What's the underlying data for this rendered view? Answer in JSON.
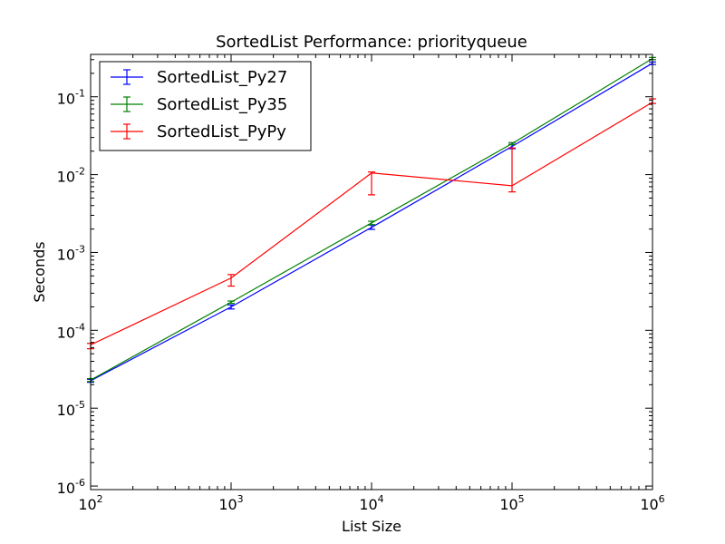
{
  "chart_data": {
    "type": "line",
    "title": "SortedList Performance: priorityqueue",
    "xlabel": "List Size",
    "ylabel": "Seconds",
    "xscale": "log",
    "yscale": "log",
    "xlim": [
      100,
      1000000
    ],
    "ylim": [
      9e-07,
      0.35
    ],
    "x": [
      100,
      1000,
      10000,
      100000,
      1000000
    ],
    "x_ticks": [
      {
        "value": 100,
        "base": "10",
        "exp": "2"
      },
      {
        "value": 1000,
        "base": "10",
        "exp": "3"
      },
      {
        "value": 10000,
        "base": "10",
        "exp": "4"
      },
      {
        "value": 100000,
        "base": "10",
        "exp": "5"
      },
      {
        "value": 1000000,
        "base": "10",
        "exp": "6"
      }
    ],
    "y_ticks": [
      {
        "value": 1e-06,
        "base": "10",
        "exp": "-6"
      },
      {
        "value": 1e-05,
        "base": "10",
        "exp": "-5"
      },
      {
        "value": 0.0001,
        "base": "10",
        "exp": "-4"
      },
      {
        "value": 0.001,
        "base": "10",
        "exp": "-3"
      },
      {
        "value": 0.01,
        "base": "10",
        "exp": "-2"
      },
      {
        "value": 0.1,
        "base": "10",
        "exp": "-1"
      }
    ],
    "series": [
      {
        "name": "SortedList_Py27",
        "color": "#0000ff",
        "values": [
          2.25e-05,
          0.0002,
          0.0021,
          0.023,
          0.27
        ],
        "err_low": [
          2.15e-05,
          0.000188,
          0.00198,
          0.0215,
          0.26
        ],
        "err_high": [
          2.35e-05,
          0.000212,
          0.00225,
          0.0245,
          0.28
        ]
      },
      {
        "name": "SortedList_Py35",
        "color": "#008000",
        "values": [
          2.3e-05,
          0.00023,
          0.0024,
          0.025,
          0.31
        ],
        "err_low": [
          2.2e-05,
          0.000222,
          0.00228,
          0.0242,
          0.3
        ],
        "err_high": [
          2.4e-05,
          0.000238,
          0.00252,
          0.0258,
          0.32
        ]
      },
      {
        "name": "SortedList_PyPy",
        "color": "#ff0000",
        "values": [
          6.5e-05,
          0.00047,
          0.0105,
          0.0072,
          0.085
        ],
        "err_low": [
          5.8e-05,
          0.00037,
          0.0055,
          0.006,
          0.082
        ],
        "err_high": [
          6.8e-05,
          0.00052,
          0.0108,
          0.022,
          0.094
        ]
      }
    ],
    "legend": "top-left",
    "grid": false
  }
}
